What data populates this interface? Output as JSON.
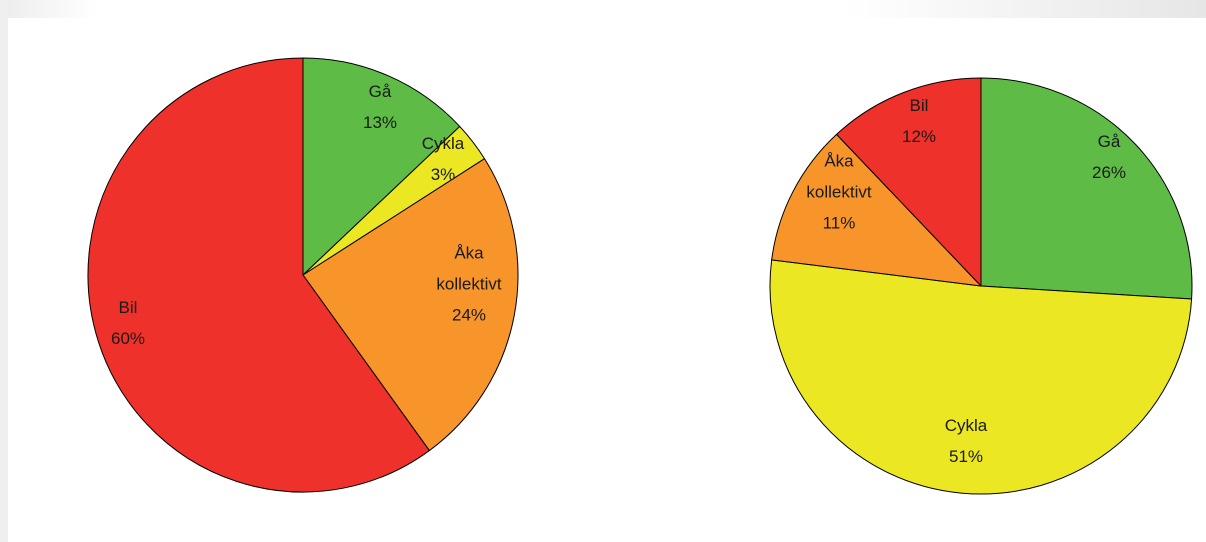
{
  "chart_data": [
    {
      "type": "pie",
      "title": "",
      "slices": [
        {
          "label_lines": [
            "Gå"
          ],
          "percent_label": "13%",
          "value": 13,
          "color": "#5dbb46"
        },
        {
          "label_lines": [
            "Cykla"
          ],
          "percent_label": "3%",
          "value": 3,
          "color": "#ebe823"
        },
        {
          "label_lines": [
            "Åka",
            "kollektivt"
          ],
          "percent_label": "24%",
          "value": 24,
          "color": "#f7952a"
        },
        {
          "label_lines": [
            "Bil"
          ],
          "percent_label": "60%",
          "value": 60,
          "color": "#ef312b"
        }
      ]
    },
    {
      "type": "pie",
      "title": "",
      "slices": [
        {
          "label_lines": [
            "Gå"
          ],
          "percent_label": "26%",
          "value": 26,
          "color": "#5dbb46"
        },
        {
          "label_lines": [
            "Cykla"
          ],
          "percent_label": "51%",
          "value": 51,
          "color": "#ebe823"
        },
        {
          "label_lines": [
            "Åka",
            "kollektivt"
          ],
          "percent_label": "11%",
          "value": 11,
          "color": "#f7952a"
        },
        {
          "label_lines": [
            "Bil"
          ],
          "percent_label": "12%",
          "value": 12,
          "color": "#ef312b"
        }
      ]
    }
  ]
}
